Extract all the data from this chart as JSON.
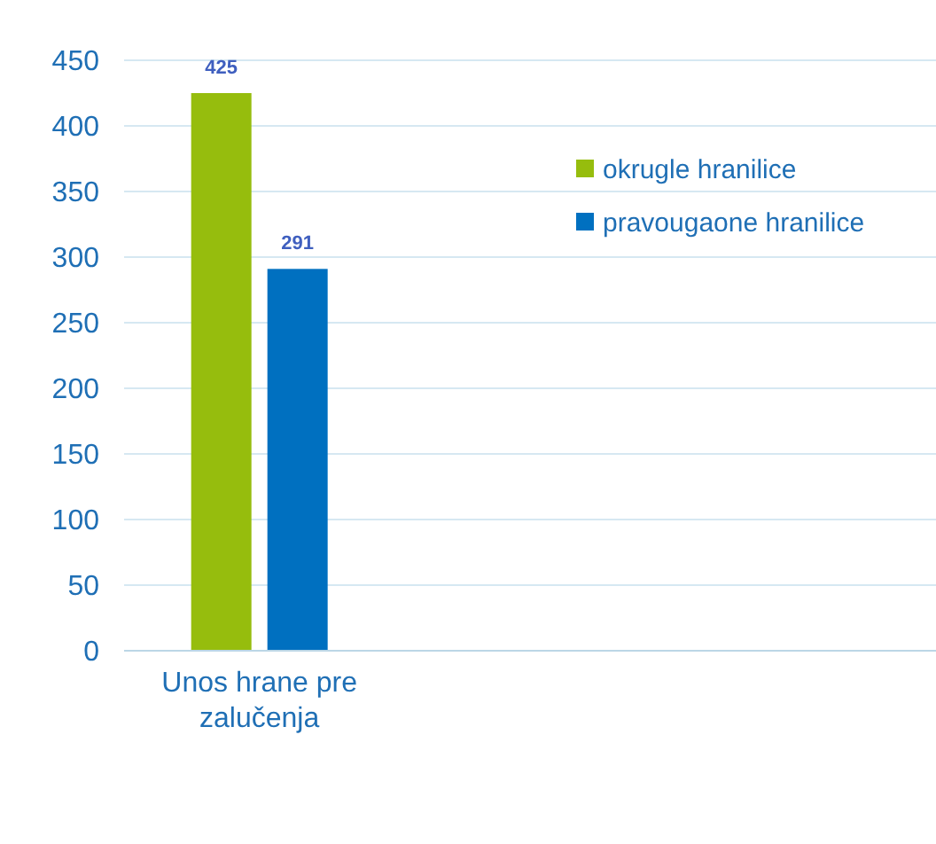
{
  "chart_data": {
    "type": "bar",
    "categories": [
      "Unos hrane pre zalučenja"
    ],
    "series": [
      {
        "name": "okrugle hranilice",
        "color": "#96bd0d",
        "values": [
          425
        ]
      },
      {
        "name": "pravougaone hranilice",
        "color": "#0070c0",
        "values": [
          291
        ]
      }
    ],
    "ylim": [
      0,
      450
    ],
    "yticks": [
      0,
      50,
      100,
      150,
      200,
      250,
      300,
      350,
      400,
      450
    ],
    "grid": "y",
    "legend": "top right",
    "data_labels": true
  }
}
